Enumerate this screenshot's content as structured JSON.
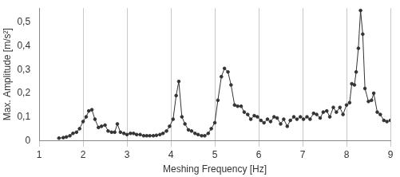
{
  "chart_data": {
    "type": "line",
    "x_label": "Meshing Frequency [Hz]",
    "y_label": "Max. Amplitude [m/s²]",
    "x": [
      1.45,
      1.55,
      1.62,
      1.7,
      1.77,
      1.85,
      1.92,
      2.0,
      2.07,
      2.13,
      2.2,
      2.27,
      2.35,
      2.42,
      2.5,
      2.57,
      2.65,
      2.72,
      2.78,
      2.85,
      2.93,
      3.0,
      3.08,
      3.15,
      3.22,
      3.3,
      3.38,
      3.45,
      3.52,
      3.6,
      3.67,
      3.75,
      3.82,
      3.9,
      3.97,
      4.05,
      4.12,
      4.18,
      4.25,
      4.32,
      4.4,
      4.47,
      4.55,
      4.62,
      4.7,
      4.77,
      4.85,
      4.92,
      5.0,
      5.07,
      5.15,
      5.22,
      5.3,
      5.37,
      5.45,
      5.52,
      5.6,
      5.67,
      5.75,
      5.82,
      5.9,
      5.97,
      6.05,
      6.12,
      6.2,
      6.27,
      6.35,
      6.42,
      6.5,
      6.57,
      6.65,
      6.72,
      6.8,
      6.87,
      6.95,
      7.02,
      7.1,
      7.17,
      7.25,
      7.32,
      7.4,
      7.47,
      7.55,
      7.62,
      7.7,
      7.77,
      7.85,
      7.92,
      8.0,
      8.07,
      8.12,
      8.18,
      8.22,
      8.27,
      8.32,
      8.37,
      8.42,
      8.5,
      8.57,
      8.62,
      8.7,
      8.77,
      8.85,
      8.92,
      9.0
    ],
    "values": [
      0.01,
      0.012,
      0.015,
      0.02,
      0.03,
      0.035,
      0.05,
      0.08,
      0.1,
      0.125,
      0.13,
      0.09,
      0.055,
      0.06,
      0.065,
      0.04,
      0.035,
      0.035,
      0.07,
      0.035,
      0.03,
      0.025,
      0.03,
      0.03,
      0.025,
      0.025,
      0.02,
      0.02,
      0.02,
      0.02,
      0.022,
      0.025,
      0.03,
      0.04,
      0.06,
      0.09,
      0.19,
      0.25,
      0.1,
      0.07,
      0.045,
      0.04,
      0.03,
      0.025,
      0.02,
      0.02,
      0.03,
      0.05,
      0.075,
      0.17,
      0.27,
      0.305,
      0.29,
      0.235,
      0.15,
      0.145,
      0.145,
      0.12,
      0.11,
      0.09,
      0.105,
      0.1,
      0.085,
      0.075,
      0.09,
      0.08,
      0.1,
      0.095,
      0.07,
      0.09,
      0.06,
      0.085,
      0.1,
      0.09,
      0.1,
      0.09,
      0.1,
      0.09,
      0.115,
      0.11,
      0.095,
      0.12,
      0.125,
      0.1,
      0.14,
      0.12,
      0.14,
      0.11,
      0.15,
      0.16,
      0.24,
      0.235,
      0.29,
      0.39,
      0.55,
      0.45,
      0.22,
      0.165,
      0.17,
      0.2,
      0.12,
      0.11,
      0.085,
      0.08,
      0.085
    ],
    "color": "#333333",
    "marker": "circle",
    "line_style": "solid",
    "xlim": [
      1,
      9
    ],
    "xticks": [
      1,
      2,
      3,
      4,
      5,
      6,
      7,
      8,
      9
    ],
    "ylim": [
      0,
      0.56
    ],
    "yticks": [
      0,
      {
        "value": 0.1,
        "label": "0,1"
      },
      {
        "value": 0.2,
        "label": "0,2"
      },
      {
        "value": 0.3,
        "label": "0,3"
      },
      {
        "value": 0.4,
        "label": "0,4"
      },
      {
        "value": 0.5,
        "label": "0,5"
      }
    ],
    "grid": true
  }
}
